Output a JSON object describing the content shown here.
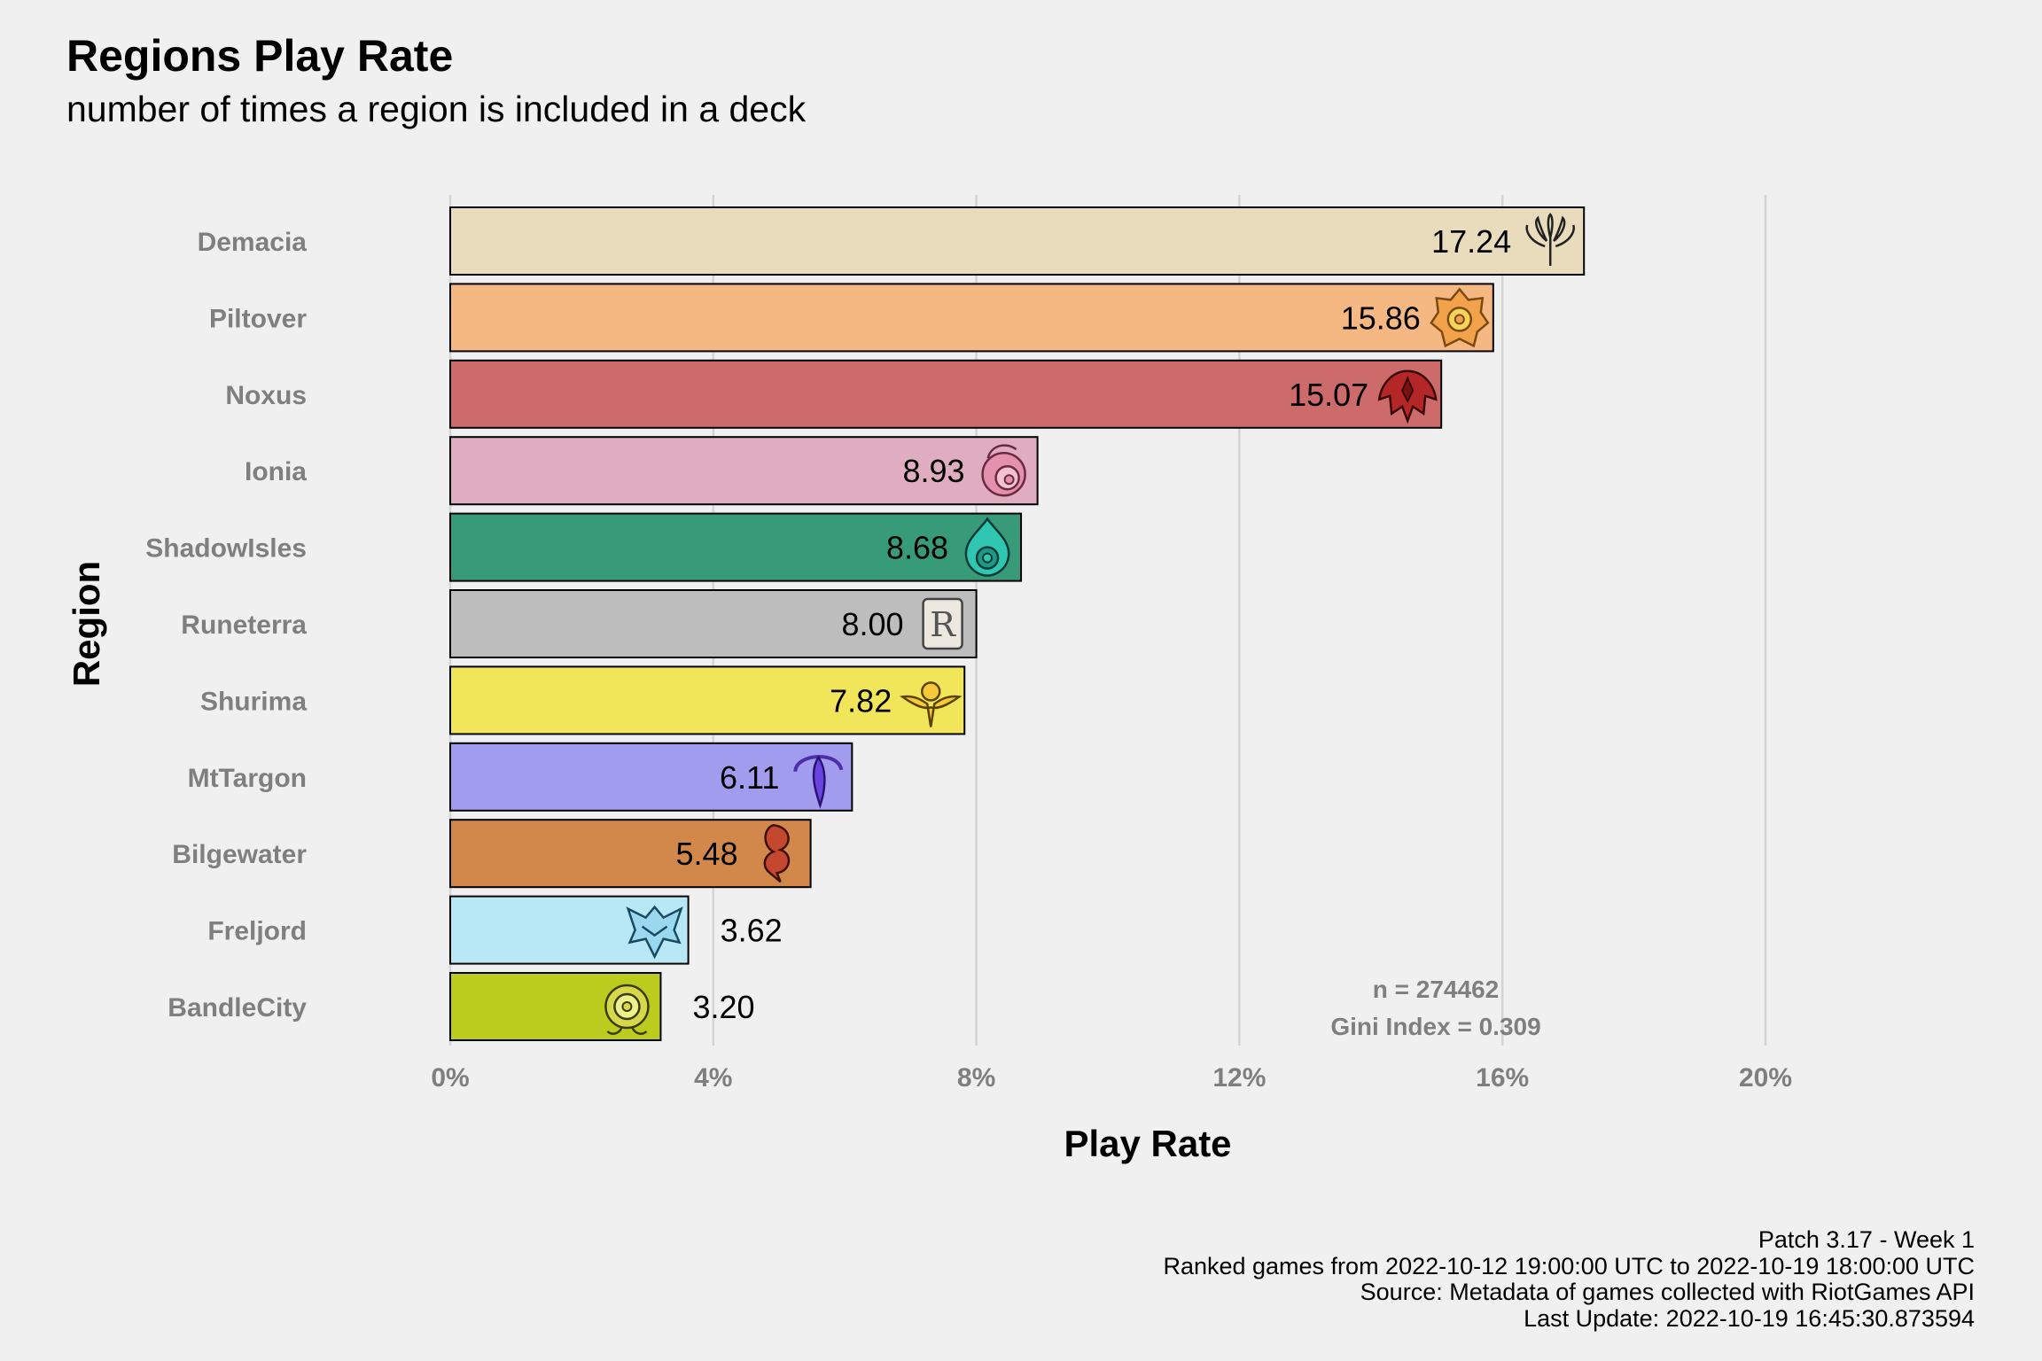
{
  "title": "Regions Play Rate",
  "subtitle": "number of times a region is included in a deck",
  "caption": {
    "line1": "Patch 3.17 - Week 1",
    "line2": "Ranked games from 2022-10-12 19:00:00 UTC to 2022-10-19 18:00:00 UTC",
    "line3": "Source: Metadata of games collected with RiotGames API",
    "line4": "Last Update: 2022-10-19 16:45:30.873594"
  },
  "stats": {
    "n": "n = 274462",
    "gini": "Gini Index = 0.309"
  },
  "chart_data": {
    "type": "bar",
    "orientation": "horizontal",
    "xlabel": "Play Rate",
    "ylabel": "Region",
    "xlim": [
      0,
      20
    ],
    "x_ticks": [
      0,
      4,
      8,
      12,
      16,
      20
    ],
    "x_tick_labels": [
      "0%",
      "4%",
      "8%",
      "12%",
      "16%",
      "20%"
    ],
    "grid": "vertical",
    "categories": [
      "Demacia",
      "Piltover",
      "Noxus",
      "Ionia",
      "ShadowIsles",
      "Runeterra",
      "Shurima",
      "MtTargon",
      "Bilgewater",
      "Freljord",
      "BandleCity"
    ],
    "values": [
      17.24,
      15.86,
      15.07,
      8.93,
      8.68,
      8.0,
      7.82,
      6.11,
      5.48,
      3.62,
      3.2
    ],
    "value_labels": [
      "17.24",
      "15.86",
      "15.07",
      "8.93",
      "8.68",
      "8.00",
      "7.82",
      "6.11",
      "5.48",
      "3.62",
      "3.20"
    ],
    "colors": [
      "#e8dcbd",
      "#f5b882",
      "#cd6a6a",
      "#e0adc0",
      "#379b7a",
      "#bdbdbd",
      "#f1e65a",
      "#a29cee",
      "#d2884a",
      "#b8e8f6",
      "#bbcc1e"
    ],
    "icons": [
      "demacia-icon",
      "piltover-icon",
      "noxus-icon",
      "ionia-icon",
      "shadowisles-icon",
      "runeterra-icon",
      "shurima-icon",
      "mttargon-icon",
      "bilgewater-icon",
      "freljord-icon",
      "bandlecity-icon"
    ]
  }
}
